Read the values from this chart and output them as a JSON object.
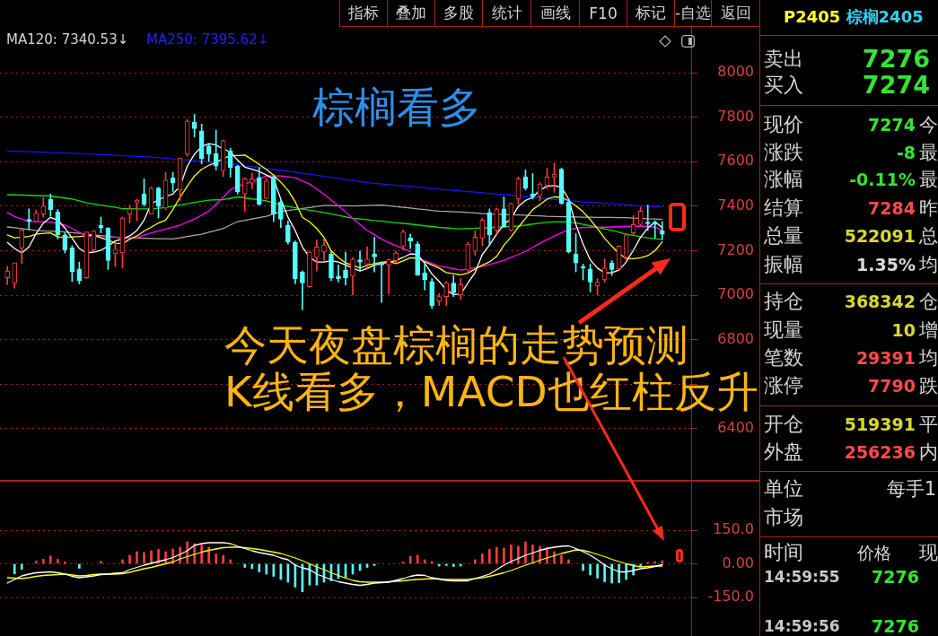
{
  "chart_data": [
    {
      "type": "candlestick",
      "categories": [
        null,
        null,
        null,
        null,
        null,
        null,
        null,
        null,
        null,
        null,
        null,
        null,
        null,
        null,
        null,
        null,
        null,
        null,
        null,
        null,
        null,
        null,
        null,
        null,
        null,
        null,
        null,
        null,
        null,
        null,
        null,
        null,
        null,
        null,
        null,
        null,
        null,
        null,
        null,
        null,
        null,
        null,
        null,
        null,
        null,
        null,
        null,
        null,
        null,
        null,
        null,
        null,
        null,
        null,
        null,
        null,
        null,
        null,
        null,
        null,
        null,
        null,
        null,
        null,
        null,
        null,
        null,
        null,
        null,
        null,
        null,
        null,
        null,
        null,
        null,
        null,
        null,
        null,
        null,
        null,
        null,
        null,
        null,
        null,
        null,
        null,
        null,
        null,
        null,
        null,
        null,
        null
      ],
      "ohlc": [
        [
          7078,
          7130,
          7048,
          7109
        ],
        [
          7055,
          7145,
          7032,
          7145
        ],
        [
          7213,
          7294,
          7143,
          7294
        ],
        [
          7341,
          7388,
          7294,
          7331
        ],
        [
          7331,
          7382,
          7329,
          7369
        ],
        [
          7365,
          7439,
          7351,
          7401
        ],
        [
          7432,
          7455,
          7355,
          7385
        ],
        [
          7374,
          7385,
          7253,
          7271
        ],
        [
          7271,
          7280,
          7190,
          7203
        ],
        [
          7213,
          7223,
          7062,
          7105
        ],
        [
          7118,
          7149,
          7051,
          7064
        ],
        [
          7078,
          7284,
          7075,
          7284
        ],
        [
          7203,
          7291,
          7197,
          7288
        ],
        [
          7315,
          7351,
          7280,
          7302
        ],
        [
          7302,
          7304,
          7116,
          7156
        ],
        [
          7186,
          7237,
          7129,
          7207
        ],
        [
          7190,
          7351,
          7122,
          7347
        ],
        [
          7365,
          7405,
          7325,
          7388
        ],
        [
          7415,
          7432,
          7334,
          7428
        ],
        [
          7455,
          7523,
          7401,
          7409
        ],
        [
          7365,
          7486,
          7365,
          7482
        ],
        [
          7482,
          7486,
          7347,
          7399
        ],
        [
          7392,
          7553,
          7385,
          7517
        ],
        [
          7527,
          7553,
          7466,
          7504
        ],
        [
          7473,
          7617,
          7426,
          7617
        ],
        [
          7634,
          7790,
          7625,
          7782
        ],
        [
          7778,
          7813,
          7711,
          7749
        ],
        [
          7738,
          7769,
          7590,
          7614
        ],
        [
          7671,
          7681,
          7601,
          7634
        ],
        [
          7637,
          7742,
          7563,
          7580
        ],
        [
          7560,
          7698,
          7533,
          7695
        ],
        [
          7648,
          7661,
          7531,
          7574
        ],
        [
          7580,
          7584,
          7455,
          7466
        ],
        [
          7455,
          7527,
          7378,
          7523
        ],
        [
          7504,
          7549,
          7479,
          7523
        ],
        [
          7529,
          7574,
          7405,
          7409
        ],
        [
          7435,
          7523,
          7432,
          7513
        ],
        [
          7531,
          7540,
          7331,
          7365
        ],
        [
          7419,
          7426,
          7304,
          7342
        ],
        [
          7315,
          7334,
          7230,
          7240
        ],
        [
          7237,
          7244,
          7051,
          7073
        ],
        [
          7105,
          7109,
          6934,
          7055
        ],
        [
          7038,
          7199,
          7035,
          7194
        ],
        [
          7170,
          7248,
          7109,
          7217
        ],
        [
          7194,
          7253,
          7156,
          7226
        ],
        [
          7186,
          7197,
          7065,
          7078
        ],
        [
          7086,
          7136,
          7059,
          7073
        ],
        [
          7113,
          7194,
          7046,
          7078
        ],
        [
          7086,
          7170,
          7001,
          7163
        ],
        [
          7159,
          7199,
          7113,
          7149
        ],
        [
          7140,
          7217,
          7122,
          7163
        ],
        [
          7186,
          7261,
          7105,
          7172
        ],
        [
          7145,
          7149,
          6968,
          7136
        ],
        [
          7136,
          7163,
          7008,
          7159
        ],
        [
          7156,
          7199,
          7145,
          7190
        ],
        [
          7221,
          7294,
          7203,
          7284
        ],
        [
          7257,
          7275,
          7210,
          7244
        ],
        [
          7230,
          7240,
          7089,
          7091
        ],
        [
          7100,
          7143,
          7024,
          7069
        ],
        [
          7062,
          7075,
          6941,
          6954
        ],
        [
          6974,
          7008,
          6954,
          6994
        ],
        [
          6994,
          7062,
          6954,
          7055
        ],
        [
          7055,
          7089,
          6994,
          7011
        ],
        [
          7001,
          7075,
          6981,
          7048
        ],
        [
          7113,
          7237,
          7102,
          7230
        ],
        [
          7197,
          7291,
          7180,
          7261
        ],
        [
          7257,
          7345,
          7223,
          7338
        ],
        [
          7372,
          7388,
          7223,
          7271
        ],
        [
          7291,
          7392,
          7277,
          7388
        ],
        [
          7388,
          7442,
          7304,
          7307
        ],
        [
          7291,
          7415,
          7288,
          7412
        ],
        [
          7432,
          7531,
          7409,
          7523
        ],
        [
          7531,
          7563,
          7473,
          7482
        ],
        [
          7455,
          7547,
          7432,
          7442
        ],
        [
          7446,
          7506,
          7425,
          7500
        ],
        [
          7493,
          7571,
          7479,
          7531
        ],
        [
          7531,
          7594,
          7463,
          7544
        ],
        [
          7567,
          7571,
          7409,
          7412
        ],
        [
          7419,
          7432,
          7190,
          7194
        ],
        [
          7186,
          7277,
          7105,
          7145
        ],
        [
          7129,
          7140,
          7069,
          7122
        ],
        [
          7118,
          7140,
          7015,
          7059
        ],
        [
          7042,
          7075,
          7001,
          7059
        ],
        [
          7069,
          7163,
          7059,
          7122
        ],
        [
          7145,
          7156,
          7089,
          7116
        ],
        [
          7118,
          7223,
          7116,
          7221
        ],
        [
          7170,
          7277,
          7156,
          7271
        ],
        [
          7280,
          7358,
          7271,
          7318
        ],
        [
          7318,
          7396,
          7315,
          7378
        ],
        [
          7329,
          7405,
          7291,
          7321
        ],
        [
          7329,
          7334,
          7257,
          7318
        ],
        [
          7290,
          7331,
          7250,
          7274
        ]
      ],
      "colors": [
        "#ff3c3c",
        "#ff3c3c",
        "#ff3c3c",
        "#54fcfc",
        "#ff3c3c",
        "#ff3c3c",
        "#54fcfc",
        "#54fcfc",
        "#54fcfc",
        "#54fcfc",
        "#54fcfc",
        "#ff3c3c",
        "#ff3c3c",
        "#54fcfc",
        "#54fcfc",
        "#ff3c3c",
        "#ff3c3c",
        "#ff3c3c",
        "#ff3c3c",
        "#54fcfc",
        "#ff3c3c",
        "#54fcfc",
        "#ff3c3c",
        "#54fcfc",
        "#ff3c3c",
        "#ff3c3c",
        "#54fcfc",
        "#54fcfc",
        "#54fcfc",
        "#54fcfc",
        "#ff3c3c",
        "#54fcfc",
        "#54fcfc",
        "#ff3c3c",
        "#ff3c3c",
        "#54fcfc",
        "#ff3c3c",
        "#54fcfc",
        "#54fcfc",
        "#54fcfc",
        "#54fcfc",
        "#54fcfc",
        "#ff3c3c",
        "#ff3c3c",
        "#ff3c3c",
        "#54fcfc",
        "#54fcfc",
        "#54fcfc",
        "#ff3c3c",
        "#54fcfc",
        "#ff3c3c",
        "#54fcfc",
        "#54fcfc",
        "#ff3c3c",
        "#ff3c3c",
        "#ff3c3c",
        "#54fcfc",
        "#54fcfc",
        "#54fcfc",
        "#54fcfc",
        "#ff3c3c",
        "#ff3c3c",
        "#54fcfc",
        "#ff3c3c",
        "#ff3c3c",
        "#ff3c3c",
        "#ff3c3c",
        "#54fcfc",
        "#ff3c3c",
        "#54fcfc",
        "#ff3c3c",
        "#ff3c3c",
        "#54fcfc",
        "#54fcfc",
        "#ff3c3c",
        "#ff3c3c",
        "#ff3c3c",
        "#54fcfc",
        "#54fcfc",
        "#54fcfc",
        "#54fcfc",
        "#54fcfc",
        "#ff3c3c",
        "#ff3c3c",
        "#54fcfc",
        "#ff3c3c",
        "#ff3c3c",
        "#ff3c3c",
        "#ff3c3c",
        "#54fcfc",
        "#54fcfc",
        "#54fcfc"
      ],
      "series": [
        {
          "type": "line",
          "color": "#ffffff",
          "values": [
            7237,
            7210,
            7190,
            7217,
            7277,
            7324,
            7350,
            7338,
            7302,
            7257,
            7210,
            7190,
            7194,
            7202,
            7221,
            7244,
            7253,
            7267,
            7291,
            7338,
            7412,
            7428,
            7444,
            7455,
            7490,
            7580,
            7634,
            7668,
            7681,
            7675,
            7657,
            7644,
            7607,
            7576,
            7566,
            7556,
            7540,
            7523,
            7432,
            7351,
            7291,
            7217,
            7170,
            7149,
            7149,
            7155,
            7149,
            7136,
            7122,
            7109,
            7120,
            7135,
            7143,
            7147,
            7156,
            7170,
            7186,
            7183,
            7143,
            7096,
            7062,
            7024,
            7003,
            7005,
            7055,
            7102,
            7183,
            7226,
            7275,
            7318,
            7345,
            7399,
            7426,
            7439,
            7473,
            7490,
            7493,
            7486,
            7432,
            7318,
            7230,
            7159,
            7122,
            7100,
            7102,
            7113,
            7149,
            7203,
            7261,
            7302,
            7330,
            7304
          ]
        },
        {
          "type": "line",
          "color": "#ffff00",
          "values": [
            7271,
            7258,
            7261,
            7264,
            7274,
            7278,
            7280,
            7262,
            7261,
            7262,
            7264,
            7267,
            7270,
            7258,
            7248,
            7234,
            7232,
            7252,
            7266,
            7289,
            7306,
            7325,
            7338,
            7385,
            7440,
            7490,
            7536,
            7566,
            7584,
            7598,
            7614,
            7628,
            7628,
            7630,
            7610,
            7588,
            7565,
            7540,
            7508,
            7472,
            7420,
            7350,
            7330,
            7300,
            7260,
            7200,
            7170,
            7145,
            7135,
            7122,
            7134,
            7142,
            7148,
            7152,
            7142,
            7154,
            7168,
            7167,
            7150,
            7136,
            7122,
            7102,
            7097,
            7092,
            7100,
            7118,
            7135,
            7150,
            7175,
            7225,
            7262,
            7306,
            7345,
            7385,
            7408,
            7432,
            7442,
            7440,
            7425,
            7402,
            7375,
            7340,
            7300,
            7256,
            7220,
            7188,
            7165,
            7164,
            7168,
            7178,
            7200,
            7240
          ]
        },
        {
          "type": "line",
          "color": "#ff00ff",
          "values": [
            7372,
            7354,
            7343,
            7332,
            7331,
            7330,
            7329,
            7322,
            7315,
            7300,
            7282,
            7266,
            7265,
            7263,
            7262,
            7260,
            7257,
            7257,
            7257,
            7270,
            7280,
            7289,
            7297,
            7306,
            7314,
            7329,
            7343,
            7360,
            7378,
            7409,
            7440,
            7475,
            7490,
            7500,
            7510,
            7523,
            7536,
            7536,
            7536,
            7532,
            7528,
            7514,
            7500,
            7477,
            7454,
            7428,
            7402,
            7374,
            7345,
            7318,
            7292,
            7272,
            7252,
            7237,
            7223,
            7210,
            7197,
            null,
            7156,
            7143,
            7131,
            7125,
            7119,
            7113,
            7118,
            7124,
            7129,
            7138,
            7147,
            7156,
            7170,
            7183,
            7197,
            7215,
            7234,
            7250,
            7266,
            7280,
            7295,
            7300,
            7305,
            7305,
            7306,
            7306,
            7307,
            7308,
            7309,
            7310,
            7311,
            7309,
            7307,
            7291
          ]
        },
        {
          "type": "line",
          "color": "#00e000",
          "values": [
            7452,
            7451,
            7450,
            7449,
            7448,
            7447,
            7446,
            7441,
            7437,
            7432,
            7424,
            7415,
            7410,
            7405,
            7400,
            7395,
            7389,
            7389,
            7388,
            7388,
            7388,
            7391,
            7394,
            7400,
            7406,
            7411,
            7417,
            7422,
            7427,
            7429,
            7430,
            7436,
            7442,
            7438,
            7433,
            7429,
            7424,
            7415,
            7405,
            7399,
            7393,
            7387,
            7382,
            7377,
            7372,
            7366,
            7359,
            7353,
            7346,
            7343,
            7340,
            7336,
            7333,
            7330,
            7326,
            7323,
            7320,
            7316,
            7312,
            7309,
            7305,
            7303,
            7300,
            7298,
            7300,
            7301,
            7303,
            7304,
            7306,
            7308,
            7309,
            7311,
            7315,
            7320,
            7324,
            7328,
            7330,
            7331,
            7329,
            7326,
            7319,
            7312,
            7305,
            7298,
            7291,
            7283,
            7274,
            7269,
            7263,
            7258,
            7254,
            7250
          ]
        },
        {
          "type": "line",
          "color": "#a8a8a8",
          "values": [
            7307,
            7303,
            7299,
            7295,
            7291,
            7289,
            7288,
            7286,
            7284,
            7281,
            7278,
            7274,
            7271,
            7268,
            7264,
            7261,
            7258,
            7257,
            7257,
            7256,
            7255,
            7254,
            7254,
            7253,
            7258,
            7264,
            7269,
            7274,
            7283,
            7291,
            7300,
            7316,
            7331,
            7337,
            7343,
            7349,
            7355,
            7366,
            7376,
            7381,
            7385,
            7390,
            7394,
            7399,
            7403,
            7403,
            7402,
            7402,
            7401,
            7402,
            7403,
            7404,
            7405,
            7402,
            7398,
            7395,
            7392,
            7388,
            7385,
            7381,
            7378,
            7377,
            7375,
            7374,
            7372,
            7370,
            7367,
            7365,
            7364,
            7363,
            7362,
            7361,
            7360,
            7358,
            7357,
            7355,
            7354,
            7353,
            7353,
            7352,
            7351,
            7351,
            7350,
            7350,
            7350,
            7349,
            7349,
            7347,
            7346,
            7344,
            7343,
            7341
          ]
        },
        {
          "type": "line",
          "color": "#1414ff",
          "values": [
            7648,
            7647,
            7646,
            7645,
            7644,
            7643,
            7641,
            7640,
            7639,
            7638,
            7637,
            7635,
            7634,
            7632,
            7631,
            7629,
            7627,
            7626,
            7624,
            7623,
            7621,
            7618,
            7616,
            7613,
            7610,
            7608,
            7605,
            7602,
            7599,
            7597,
            7594,
            7590,
            7586,
            7582,
            7578,
            7574,
            7569,
            7565,
            7561,
            7557,
            7553,
            7548,
            7544,
            7539,
            7534,
            7530,
            7525,
            7520,
            7516,
            7511,
            7506,
            7503,
            7500,
            7497,
            7494,
            7492,
            7489,
            7486,
            7483,
            7480,
            7477,
            7474,
            7472,
            7469,
            7466,
            7464,
            7461,
            7458,
            7455,
            7453,
            7450,
            7447,
            7444,
            7441,
            7438,
            7434,
            7431,
            7428,
            7425,
            7422,
            7419,
            7417,
            7415,
            7413,
            7411,
            7409,
            7406,
            7404,
            7402,
            7400,
            7398,
            7396
          ]
        }
      ],
      "ylim": [
        6166,
        8206
      ],
      "yticks": [
        8000,
        7800,
        7600,
        7400,
        7200,
        7000,
        6800,
        {
          "value": 6600,
          "label": null
        },
        6400
      ],
      "grid": "y",
      "tick_labels": "y",
      "annotations": [
        "指标",
        "叠加",
        "多股",
        "统计",
        "画线",
        "F10",
        "标记",
        "-自选",
        "返回",
        "MA120: 7340.53↓",
        "MA250: 7395.62↓",
        "棕榈看多",
        "今天夜盘棕榈的走势预测",
        "K线看多，MACD也红柱反升"
      ]
    },
    {
      "type": "bar",
      "categories": [
        null,
        null,
        null,
        null,
        null,
        null,
        null,
        null,
        null,
        null,
        null,
        null,
        null,
        null,
        null,
        null,
        null,
        null,
        null,
        null,
        null,
        null,
        null,
        null,
        null,
        null,
        null,
        null,
        null,
        null,
        null,
        null,
        null,
        null,
        null,
        null,
        null,
        null,
        null,
        null,
        null,
        null,
        null,
        null,
        null,
        null,
        null,
        null,
        null,
        null,
        null,
        null,
        null,
        null,
        null,
        null,
        null,
        null,
        null,
        null,
        null,
        null,
        null,
        null,
        null,
        null,
        null,
        null,
        null,
        null,
        null,
        null,
        null,
        null,
        null,
        null,
        null,
        null,
        null,
        null,
        null,
        null,
        null,
        null,
        null,
        null,
        null,
        null,
        null,
        null,
        null,
        null
      ],
      "series": [
        {
          "colors": [
            "#ff3c3c",
            "#54fcfc",
            "#54fcfc",
            "#ff3c3c",
            "#ff3c3c",
            "#ff3c3c",
            "#ff3c3c",
            "#ff3c3c",
            "#ff3c3c",
            "#ff3c3c",
            "#54fcfc",
            "#ff3c3c",
            "#ff3c3c",
            "#ff3c3c",
            "#ff3c3c",
            "#ff3c3c",
            "#ff3c3c",
            "#ff3c3c",
            "#ff3c3c",
            "#ff3c3c",
            "#ff3c3c",
            "#ff3c3c",
            "#ff3c3c",
            "#ff3c3c",
            "#ff3c3c",
            "#ff3c3c",
            "#ff3c3c",
            "#ff3c3c",
            "#ff3c3c",
            "#ff3c3c",
            "#ff3c3c",
            "#ff3c3c",
            "#ff3c3c",
            "#54fcfc",
            "#54fcfc",
            "#54fcfc",
            "#54fcfc",
            "#54fcfc",
            "#54fcfc",
            "#54fcfc",
            "#54fcfc",
            "#54fcfc",
            "#54fcfc",
            "#54fcfc",
            "#54fcfc",
            "#54fcfc",
            "#54fcfc",
            "#54fcfc",
            "#54fcfc",
            "#54fcfc",
            "#54fcfc",
            "#54fcfc",
            "#ff3c3c",
            "#ff3c3c",
            "#ff3c3c",
            "#ff3c3c",
            "#ff3c3c",
            "#ff3c3c",
            "#ff3c3c",
            "#ff3c3c",
            "#54fcfc",
            "#54fcfc",
            "#54fcfc",
            "#54fcfc",
            "#ff3c3c",
            "#ff3c3c",
            "#ff3c3c",
            "#ff3c3c",
            "#ff3c3c",
            "#ff3c3c",
            "#ff3c3c",
            "#ff3c3c",
            "#ff3c3c",
            "#ff3c3c",
            "#ff3c3c",
            "#ff3c3c",
            "#ff3c3c",
            "#ff3c3c",
            "#ff3c3c",
            "#ff3c3c",
            "#54fcfc",
            "#54fcfc",
            "#54fcfc",
            "#54fcfc",
            "#54fcfc",
            "#54fcfc",
            "#54fcfc",
            "#54fcfc",
            "#54fcfc",
            "#ff3c3c",
            "#ff3c3c",
            "#ff3c3c"
          ],
          "values": [
            null,
            -45,
            -25,
            null,
            12,
            20,
            35,
            20,
            8,
            null,
            -20,
            null,
            null,
            12,
            null,
            null,
            18,
            38,
            54,
            50,
            58,
            64,
            54,
            66,
            74,
            98,
            90,
            84,
            74,
            44,
            38,
            18,
            null,
            -16,
            -22,
            -36,
            -46,
            -56,
            -70,
            -82,
            -104,
            -125,
            -95,
            -95,
            -82,
            -76,
            -66,
            -62,
            -46,
            -30,
            -16,
            -8,
            null,
            null,
            null,
            8,
            34,
            38,
            18,
            10,
            -10,
            -8,
            -12,
            -10,
            null,
            18,
            44,
            64,
            74,
            70,
            84,
            78,
            98,
            84,
            78,
            74,
            54,
            38,
            18,
            null,
            -30,
            -50,
            -64,
            -80,
            -86,
            -84,
            -70,
            -50,
            -10,
            6,
            10,
            14
          ]
        },
        {
          "type": "line",
          "color": "#ffffff",
          "values": [
            -86,
            -70,
            -54,
            -46,
            -40,
            -38,
            -36,
            -40,
            -46,
            -56,
            -62,
            -58,
            -54,
            -48,
            -46,
            -42,
            -40,
            -26,
            -16,
            -6,
            2,
            10,
            18,
            28,
            42,
            58,
            82,
            90,
            94,
            94,
            94,
            90,
            78,
            68,
            58,
            50,
            44,
            38,
            26,
            18,
            -6,
            -18,
            -26,
            -46,
            -58,
            -70,
            -80,
            -86,
            -92,
            -96,
            -92,
            -86,
            -84,
            -82,
            -74,
            -66,
            -56,
            -50,
            -52,
            -62,
            -68,
            -74,
            -76,
            -76,
            -76,
            -66,
            -56,
            -46,
            -26,
            -6,
            10,
            24,
            38,
            48,
            60,
            68,
            74,
            78,
            80,
            68,
            54,
            38,
            18,
            -6,
            -22,
            -36,
            -36,
            -30,
            -22,
            -18,
            -12,
            -4
          ]
        },
        {
          "type": "line",
          "color": "#ffff00",
          "values": [
            -62,
            -64,
            -66,
            -62,
            -56,
            -52,
            -50,
            -48,
            -46,
            -50,
            -54,
            -52,
            -48,
            -46,
            -46,
            -46,
            -44,
            -38,
            -30,
            -22,
            -16,
            -8,
            0,
            8,
            22,
            32,
            42,
            52,
            60,
            66,
            72,
            74,
            74,
            72,
            68,
            64,
            58,
            52,
            46,
            36,
            26,
            14,
            0,
            -14,
            -26,
            -40,
            -52,
            -64,
            -74,
            -80,
            -82,
            -82,
            -82,
            -80,
            -78,
            -76,
            -72,
            -70,
            -68,
            -66,
            -68,
            -70,
            -70,
            -70,
            -70,
            -66,
            -62,
            -56,
            -48,
            -40,
            -30,
            -18,
            -6,
            4,
            16,
            26,
            36,
            46,
            54,
            62,
            60,
            52,
            42,
            32,
            20,
            10,
            0,
            -8,
            -14,
            -12,
            -10,
            -10
          ]
        }
      ],
      "ylim": [
        -322,
        370
      ],
      "yticks": [
        {
          "value": 150,
          "label": "150.0"
        },
        {
          "value": 0,
          "label": "0.00"
        },
        {
          "value": -150,
          "label": "-150.0"
        }
      ],
      "grid": "y",
      "tick_labels": "y"
    },
    {
      "type": "other",
      "title": "P2405 棕榈2405",
      "annotations": [
        "卖出",
        "7276",
        "买入",
        "7274",
        "现价",
        "7274",
        "今",
        "涨跌",
        "-8",
        "最",
        "涨幅",
        "-0.11%",
        "最",
        "结算",
        "7284",
        "昨",
        "总量",
        "522091",
        "总",
        "振幅",
        "1.35%",
        "均",
        "持仓",
        "368342",
        "仓",
        "现量",
        "10",
        "增",
        "笔数",
        "29391",
        "均",
        "涨停",
        "7790",
        "跌",
        "开仓",
        "519391",
        "平",
        "外盘",
        "256236",
        "内",
        "单位",
        "每手1",
        "市场",
        "时间",
        "价格",
        "现",
        "14:59:55",
        "7276",
        "14:59:56",
        "7276"
      ]
    }
  ]
}
